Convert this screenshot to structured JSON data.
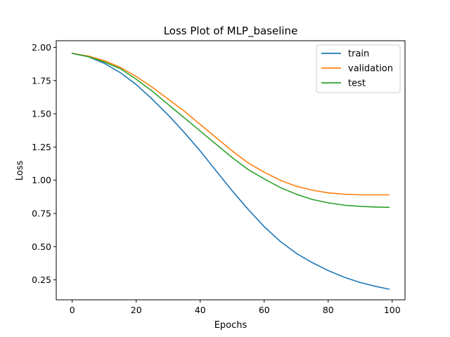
{
  "chart_data": {
    "type": "line",
    "title": "Loss Plot of MLP_baseline",
    "xlabel": "Epochs",
    "ylabel": "Loss",
    "xlim": [
      -5,
      104
    ],
    "ylim": [
      0.1,
      2.05
    ],
    "xticks": [
      0,
      20,
      40,
      60,
      80,
      100
    ],
    "xtick_labels": [
      "0",
      "20",
      "40",
      "60",
      "80",
      "100"
    ],
    "yticks": [
      0.25,
      0.5,
      0.75,
      1.0,
      1.25,
      1.5,
      1.75,
      2.0
    ],
    "ytick_labels": [
      "0.25",
      "0.50",
      "0.75",
      "1.00",
      "1.25",
      "1.50",
      "1.75",
      "2.00"
    ],
    "grid": false,
    "legend_position": "top-right",
    "x": [
      0,
      5,
      10,
      15,
      20,
      25,
      30,
      35,
      40,
      45,
      50,
      55,
      60,
      65,
      70,
      75,
      80,
      85,
      90,
      95,
      99
    ],
    "series": [
      {
        "name": "train",
        "color": "#1f77b4",
        "values": [
          1.955,
          1.93,
          1.88,
          1.81,
          1.72,
          1.61,
          1.49,
          1.36,
          1.22,
          1.07,
          0.92,
          0.78,
          0.65,
          0.54,
          0.45,
          0.38,
          0.32,
          0.27,
          0.23,
          0.2,
          0.18
        ]
      },
      {
        "name": "validation",
        "color": "#ff7f0e",
        "values": [
          1.955,
          1.935,
          1.9,
          1.85,
          1.78,
          1.7,
          1.61,
          1.52,
          1.42,
          1.32,
          1.22,
          1.13,
          1.06,
          1.0,
          0.955,
          0.925,
          0.905,
          0.895,
          0.89,
          0.89,
          0.89
        ]
      },
      {
        "name": "test",
        "color": "#2ca02c",
        "values": [
          1.955,
          1.93,
          1.89,
          1.84,
          1.76,
          1.67,
          1.57,
          1.47,
          1.37,
          1.27,
          1.17,
          1.08,
          1.01,
          0.945,
          0.895,
          0.855,
          0.83,
          0.812,
          0.803,
          0.798,
          0.796
        ]
      }
    ]
  }
}
